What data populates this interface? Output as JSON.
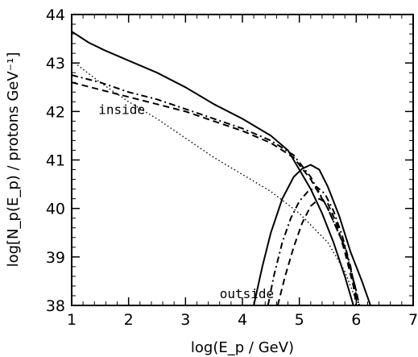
{
  "chart_data": {
    "type": "line",
    "title": "",
    "xlabel": "log(E_p / GeV)",
    "ylabel": "log[N_p(E_p) / protons GeV⁻¹]",
    "xlim": [
      1,
      7
    ],
    "ylim": [
      38,
      44
    ],
    "x_ticks": [
      "1",
      "2",
      "3",
      "4",
      "5",
      "6",
      "7"
    ],
    "y_ticks": [
      "38",
      "39",
      "40",
      "41",
      "42",
      "43",
      "44"
    ],
    "grid": false,
    "annotations": [
      {
        "text": "inside",
        "x": 1.47,
        "y": 41.95
      },
      {
        "text": "outside",
        "x": 3.6,
        "y": 38.15
      }
    ],
    "series": [
      {
        "style": "solid",
        "points": [
          [
            1.0,
            43.65
          ],
          [
            1.3,
            43.42
          ],
          [
            1.6,
            43.25
          ],
          [
            2.0,
            43.05
          ],
          [
            2.5,
            42.8
          ],
          [
            3.0,
            42.5
          ],
          [
            3.5,
            42.15
          ],
          [
            4.0,
            41.85
          ],
          [
            4.5,
            41.5
          ],
          [
            4.8,
            41.2
          ],
          [
            5.0,
            40.8
          ],
          [
            5.2,
            40.4
          ],
          [
            5.4,
            39.9
          ],
          [
            5.6,
            39.3
          ],
          [
            5.8,
            38.6
          ],
          [
            5.95,
            38.0
          ]
        ]
      },
      {
        "style": "dotted",
        "points": [
          [
            1.0,
            43.05
          ],
          [
            1.5,
            42.6
          ],
          [
            2.0,
            42.2
          ],
          [
            2.5,
            41.85
          ],
          [
            3.0,
            41.45
          ],
          [
            3.5,
            41.05
          ],
          [
            4.0,
            40.7
          ],
          [
            4.5,
            40.35
          ],
          [
            5.0,
            39.9
          ],
          [
            5.5,
            39.3
          ],
          [
            5.8,
            38.7
          ],
          [
            6.0,
            38.1
          ]
        ]
      },
      {
        "style": "dashed",
        "points": [
          [
            1.0,
            42.6
          ],
          [
            1.5,
            42.45
          ],
          [
            2.0,
            42.3
          ],
          [
            2.5,
            42.15
          ],
          [
            3.0,
            42.0
          ],
          [
            3.5,
            41.8
          ],
          [
            4.0,
            41.6
          ],
          [
            4.5,
            41.35
          ],
          [
            4.9,
            41.05
          ],
          [
            5.2,
            40.6
          ],
          [
            5.5,
            40.0
          ],
          [
            5.8,
            39.2
          ],
          [
            6.0,
            38.3
          ],
          [
            6.05,
            38.0
          ]
        ]
      },
      {
        "style": "dashdot",
        "points": [
          [
            1.0,
            42.75
          ],
          [
            1.5,
            42.6
          ],
          [
            2.0,
            42.4
          ],
          [
            2.5,
            42.25
          ],
          [
            3.0,
            42.05
          ],
          [
            3.5,
            41.85
          ],
          [
            4.0,
            41.65
          ],
          [
            4.5,
            41.4
          ],
          [
            4.9,
            41.1
          ],
          [
            5.2,
            40.65
          ],
          [
            5.5,
            40.0
          ],
          [
            5.8,
            39.2
          ],
          [
            6.0,
            38.3
          ],
          [
            6.05,
            38.0
          ]
        ]
      },
      {
        "style": "solid",
        "points": [
          [
            4.2,
            38.0
          ],
          [
            4.35,
            38.8
          ],
          [
            4.5,
            39.5
          ],
          [
            4.7,
            40.2
          ],
          [
            4.9,
            40.65
          ],
          [
            5.05,
            40.82
          ],
          [
            5.2,
            40.9
          ],
          [
            5.35,
            40.8
          ],
          [
            5.5,
            40.45
          ],
          [
            5.7,
            39.85
          ],
          [
            5.9,
            39.1
          ],
          [
            6.1,
            38.5
          ],
          [
            6.25,
            38.0
          ]
        ]
      },
      {
        "style": "dashdot",
        "points": [
          [
            4.45,
            38.0
          ],
          [
            4.55,
            38.6
          ],
          [
            4.7,
            39.3
          ],
          [
            4.85,
            39.8
          ],
          [
            5.0,
            40.15
          ],
          [
            5.15,
            40.35
          ],
          [
            5.3,
            40.45
          ],
          [
            5.45,
            40.3
          ],
          [
            5.6,
            39.95
          ],
          [
            5.75,
            39.45
          ],
          [
            5.9,
            38.8
          ],
          [
            6.0,
            38.2
          ],
          [
            6.05,
            38.0
          ]
        ]
      },
      {
        "style": "dashed",
        "points": [
          [
            4.62,
            38.0
          ],
          [
            4.75,
            38.6
          ],
          [
            4.9,
            39.2
          ],
          [
            5.05,
            39.7
          ],
          [
            5.2,
            40.05
          ],
          [
            5.35,
            40.2
          ],
          [
            5.5,
            40.1
          ],
          [
            5.65,
            39.7
          ],
          [
            5.8,
            39.1
          ],
          [
            5.95,
            38.4
          ],
          [
            6.0,
            38.0
          ]
        ]
      }
    ]
  }
}
